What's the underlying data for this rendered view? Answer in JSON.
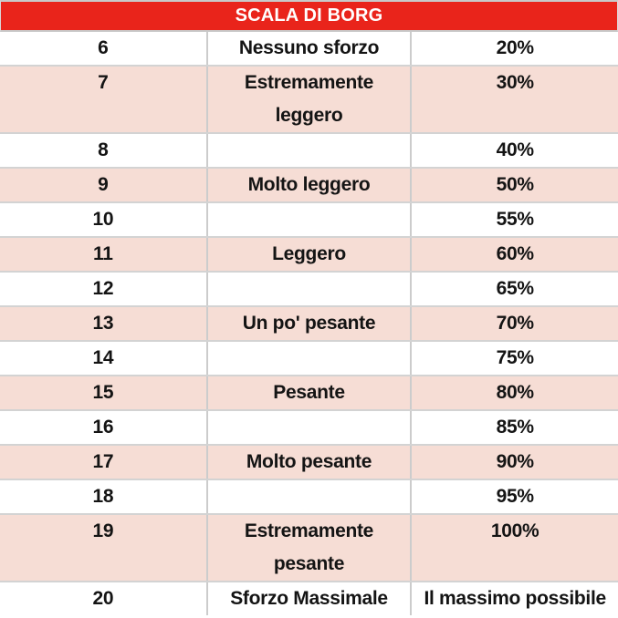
{
  "header": {
    "title": "SCALA DI BORG"
  },
  "colors": {
    "header_bg": "#e9241b",
    "header_text": "#ffffff",
    "row_bg": "#ffffff",
    "row_alt_bg": "#f6ddd5",
    "row_separator": "#d3d3d3",
    "column_divider": "#cccccc",
    "text": "#141414"
  },
  "rows": [
    {
      "scale": "6",
      "label": "Nessuno sforzo",
      "intensity": "20%"
    },
    {
      "scale": "7",
      "label": "Estremamente\nleggero",
      "intensity": "30%"
    },
    {
      "scale": "8",
      "label": "",
      "intensity": "40%"
    },
    {
      "scale": "9",
      "label": "Molto leggero",
      "intensity": "50%"
    },
    {
      "scale": "10",
      "label": "",
      "intensity": "55%"
    },
    {
      "scale": "11",
      "label": "Leggero",
      "intensity": "60%"
    },
    {
      "scale": "12",
      "label": "",
      "intensity": "65%"
    },
    {
      "scale": "13",
      "label": "Un po' pesante",
      "intensity": "70%"
    },
    {
      "scale": "14",
      "label": "",
      "intensity": "75%"
    },
    {
      "scale": "15",
      "label": "Pesante",
      "intensity": "80%"
    },
    {
      "scale": "16",
      "label": "",
      "intensity": "85%"
    },
    {
      "scale": "17",
      "label": "Molto pesante",
      "intensity": "90%"
    },
    {
      "scale": "18",
      "label": "",
      "intensity": "95%"
    },
    {
      "scale": "19",
      "label": "Estremamente\npesante",
      "intensity": "100%"
    },
    {
      "scale": "20",
      "label": "Sforzo Massimale",
      "intensity": "Il massimo possibile"
    }
  ],
  "chart_data": {
    "type": "table",
    "title": "SCALA DI BORG",
    "rows": [
      [
        "6",
        "Nessuno sforzo",
        "20%"
      ],
      [
        "7",
        "Estremamente leggero",
        "30%"
      ],
      [
        "8",
        "",
        "40%"
      ],
      [
        "9",
        "Molto leggero",
        "50%"
      ],
      [
        "10",
        "",
        "55%"
      ],
      [
        "11",
        "Leggero",
        "60%"
      ],
      [
        "12",
        "",
        "65%"
      ],
      [
        "13",
        "Un po' pesante",
        "70%"
      ],
      [
        "14",
        "",
        "75%"
      ],
      [
        "15",
        "Pesante",
        "80%"
      ],
      [
        "16",
        "",
        "85%"
      ],
      [
        "17",
        "Molto pesante",
        "90%"
      ],
      [
        "18",
        "",
        "95%"
      ],
      [
        "19",
        "Estremamente pesante",
        "100%"
      ],
      [
        "20",
        "Sforzo Massimale",
        "Il massimo possibile"
      ]
    ],
    "layout": {
      "columns": 3,
      "header_style": "red banner, white bold caps text, centered",
      "row_striping": "white / light pink alternating starting white",
      "alignment": "all cells centered"
    }
  }
}
